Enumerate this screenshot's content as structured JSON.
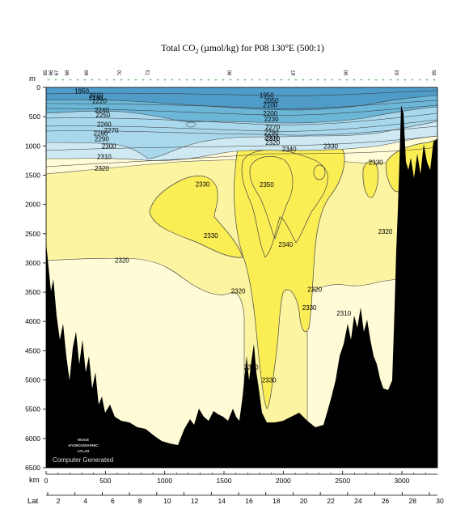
{
  "chart_data": {
    "type": "heatmap",
    "title": "Total CO",
    "title_sub": "2",
    "title_rest": " (µmol/kg) for P08 130°E (500:1)",
    "depth_unit": "m",
    "distance_unit": "km",
    "lat_label": "Lat",
    "ylim": [
      0,
      6500
    ],
    "xlim": [
      0,
      3300
    ],
    "depth_ticks": [
      "0",
      "500",
      "1000",
      "1500",
      "2000",
      "2500",
      "3000",
      "3500",
      "4000",
      "4500",
      "5000",
      "5500",
      "6000",
      "6500"
    ],
    "km_ticks": [
      "0",
      "500",
      "1000",
      "1500",
      "2000",
      "2500",
      "3000"
    ],
    "lat_ticks": [
      "2",
      "4",
      "6",
      "8",
      "10",
      "12",
      "14",
      "16",
      "18",
      "20",
      "22",
      "24",
      "26",
      "28",
      "30"
    ],
    "station_labels": [
      "65",
      "66",
      "67",
      "68",
      "69",
      "70",
      "73",
      "80",
      "87",
      "90",
      "93",
      "95"
    ],
    "contour_labels": [
      {
        "text": "2320",
        "km": 2265,
        "depth": 3450
      },
      {
        "text": "2330",
        "km": 2220,
        "depth": 3760
      },
      {
        "text": "2310",
        "km": 2510,
        "depth": 3860
      },
      {
        "text": "2320",
        "km": 1620,
        "depth": 3480
      },
      {
        "text": "2330",
        "km": 1730,
        "depth": 4780
      },
      {
        "text": "2330",
        "km": 1880,
        "depth": 5000
      },
      {
        "text": "2320",
        "km": 640,
        "depth": 2950
      },
      {
        "text": "2330",
        "km": 1320,
        "depth": 1650
      },
      {
        "text": "2330",
        "km": 1390,
        "depth": 2530
      },
      {
        "text": "2350",
        "km": 1860,
        "depth": 1660
      },
      {
        "text": "2340",
        "km": 2020,
        "depth": 2680
      },
      {
        "text": "2340",
        "km": 2050,
        "depth": 1050
      },
      {
        "text": "2330",
        "km": 2400,
        "depth": 1000
      },
      {
        "text": "2330",
        "km": 2780,
        "depth": 1280
      },
      {
        "text": "2320",
        "km": 2860,
        "depth": 2460
      },
      {
        "text": "2320",
        "km": 470,
        "depth": 1380
      },
      {
        "text": "2310",
        "km": 490,
        "depth": 1180
      },
      {
        "text": "2300",
        "km": 530,
        "depth": 1000
      },
      {
        "text": "2290",
        "km": 470,
        "depth": 880
      },
      {
        "text": "2280",
        "km": 460,
        "depth": 780
      },
      {
        "text": "2270",
        "km": 550,
        "depth": 730
      },
      {
        "text": "2260",
        "km": 490,
        "depth": 630
      },
      {
        "text": "2250",
        "km": 480,
        "depth": 470
      },
      {
        "text": "2240",
        "km": 470,
        "depth": 390
      },
      {
        "text": "2220",
        "km": 450,
        "depth": 230
      },
      {
        "text": "1950",
        "km": 300,
        "depth": 60
      },
      {
        "text": "2010",
        "km": 420,
        "depth": 130
      },
      {
        "text": "2130",
        "km": 420,
        "depth": 180
      },
      {
        "text": "1950",
        "km": 1860,
        "depth": 130
      },
      {
        "text": "2050",
        "km": 1900,
        "depth": 220
      },
      {
        "text": "2100",
        "km": 1890,
        "depth": 300
      },
      {
        "text": "2200",
        "km": 1890,
        "depth": 440
      },
      {
        "text": "2230",
        "km": 1900,
        "depth": 540
      },
      {
        "text": "2270",
        "km": 1910,
        "depth": 680
      },
      {
        "text": "2290",
        "km": 1900,
        "depth": 770
      },
      {
        "text": "2300",
        "km": 1900,
        "depth": 850
      },
      {
        "text": "2310",
        "km": 1910,
        "depth": 870
      },
      {
        "text": "2320",
        "km": 1910,
        "depth": 940
      }
    ],
    "watermark": {
      "lines": [
        "WOCE",
        "HYDROGRAPHIC",
        "ATLAS"
      ],
      "caption": "Computer Generated"
    },
    "colors": {
      "deep_blue": "#4f9cc8",
      "mid_blue": "#6cb6d8",
      "light_blue": "#a9d8ec",
      "pale_blue": "#cfe9f3",
      "cream": "#fefbd6",
      "pale_yellow": "#fcf4a0",
      "yellow": "#fbee55",
      "land": "#000000",
      "station_plus": "#2a9a2a"
    }
  }
}
